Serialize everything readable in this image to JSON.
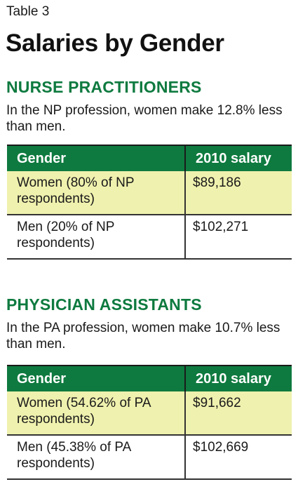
{
  "table_label": "Table 3",
  "title": "Salaries by Gender",
  "sections": [
    {
      "heading": "NURSE PRACTITIONERS",
      "description": "In the NP profession, women make 12.8% less than men.",
      "columns": [
        "Gender",
        "2010 salary"
      ],
      "rows": [
        {
          "gender": "Women (80% of NP respondents)",
          "salary": "$89,186"
        },
        {
          "gender": "Men (20% of NP respondents)",
          "salary": "$102,271"
        }
      ]
    },
    {
      "heading": "PHYSICIAN ASSISTANTS",
      "description": "In the PA profession, women make 10.7% less than men.",
      "columns": [
        "Gender",
        "2010 salary"
      ],
      "rows": [
        {
          "gender": "Women (54.62% of PA respondents)",
          "salary": "$91,662"
        },
        {
          "gender": "Men (45.38% of PA respondents)",
          "salary": "$102,669"
        }
      ]
    }
  ],
  "colors": {
    "heading_green": "#0e7a3f",
    "header_fill": "#0e7a3f",
    "highlight_row": "#eff1ae"
  }
}
